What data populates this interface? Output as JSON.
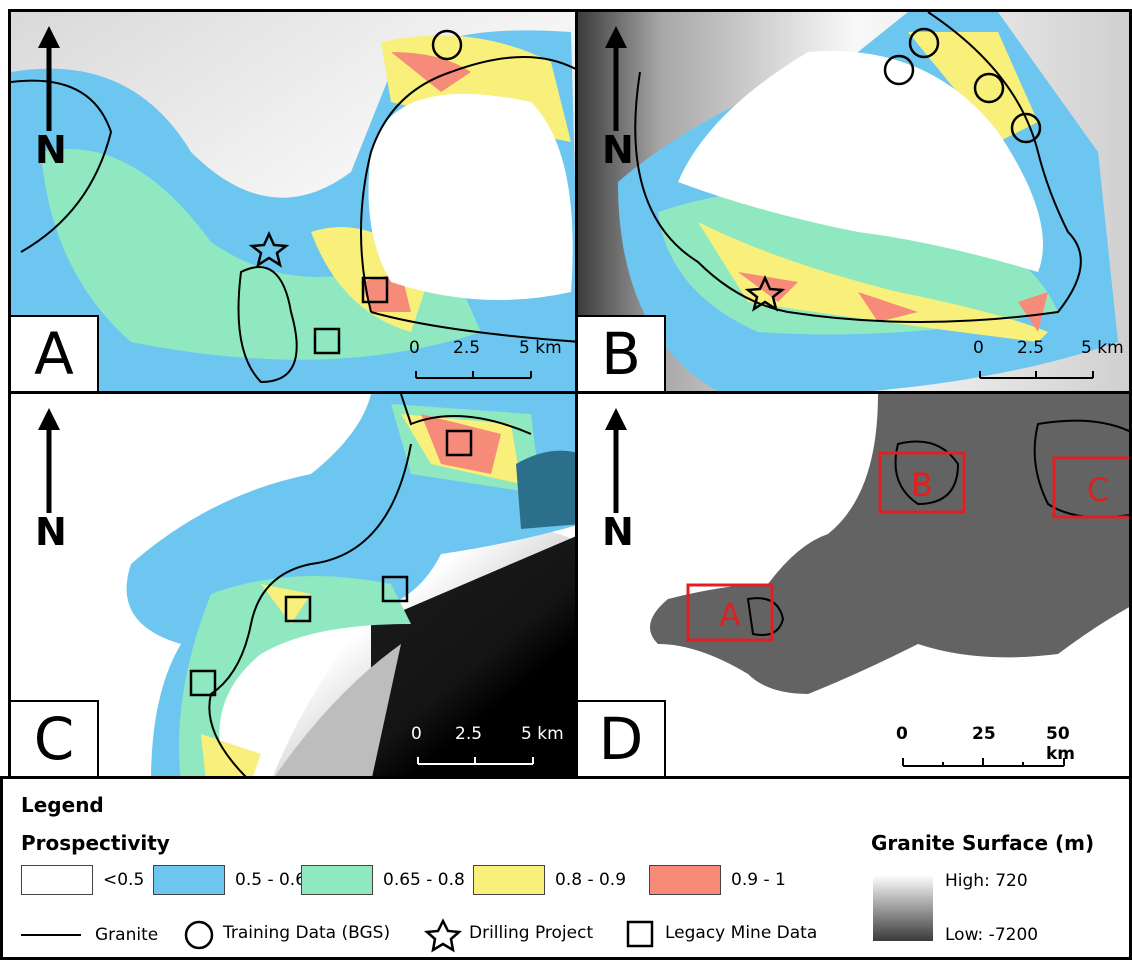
{
  "panels": [
    {
      "letter": "A",
      "north": "N",
      "scale": [
        "0",
        "2.5",
        "5 km"
      ]
    },
    {
      "letter": "B",
      "north": "N",
      "scale": [
        "0",
        "2.5",
        "5 km"
      ]
    },
    {
      "letter": "C",
      "north": "N",
      "scale": [
        "0",
        "2.5",
        "5 km"
      ]
    },
    {
      "letter": "D",
      "north": "N",
      "scale": [
        "0",
        "25",
        "50 km"
      ],
      "boxes": [
        "A",
        "B",
        "C"
      ]
    }
  ],
  "legend": {
    "title": "Legend",
    "prospectivity_title": "Prospectivity",
    "classes": [
      {
        "label": "<0.5",
        "color": "#ffffff"
      },
      {
        "label": "0.5 - 0.65",
        "color": "#6cc6f0"
      },
      {
        "label": "0.65 - 0.8",
        "color": "#8fe8c0"
      },
      {
        "label": "0.8 - 0.9",
        "color": "#f8f07a"
      },
      {
        "label": "0.9 - 1",
        "color": "#f58b78"
      }
    ],
    "granite_surface_title": "Granite Surface (m)",
    "high": "High: 720",
    "low": "Low: -7200",
    "symbols": [
      {
        "label": "Granite",
        "icon": "line"
      },
      {
        "label": "Training Data (BGS)",
        "icon": "circle"
      },
      {
        "label": "Drilling Project",
        "icon": "star"
      },
      {
        "label": "Legacy Mine Data",
        "icon": "square"
      }
    ]
  }
}
